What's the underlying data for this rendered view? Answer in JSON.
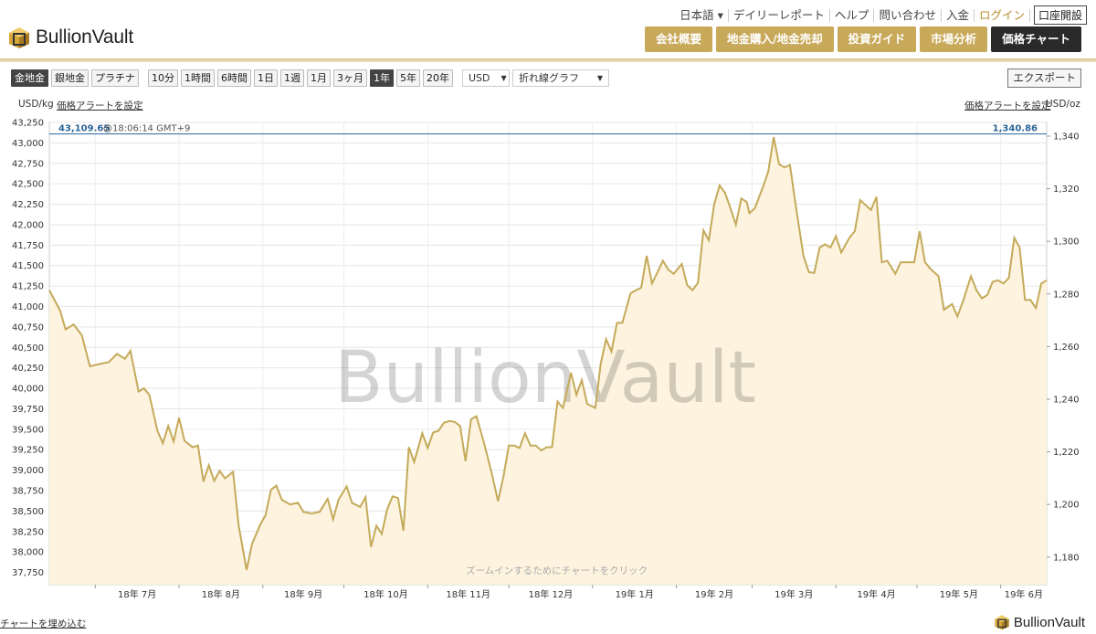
{
  "brand": {
    "name": "BullionVault"
  },
  "top_links": [
    "日本語 ▾",
    "デイリーレポート",
    "ヘルプ",
    "問い合わせ",
    "入金",
    "ログイン"
  ],
  "account_button": "口座開設",
  "nav": [
    "会社概要",
    "地金購入/地金売却",
    "投資ガイド",
    "市場分析",
    "価格チャート"
  ],
  "toolbar": {
    "metals": [
      "金地金",
      "銀地金",
      "プラチナ"
    ],
    "ranges": [
      "10分",
      "1時間",
      "6時間",
      "1日",
      "1週",
      "1月",
      "3ヶ月",
      "1年",
      "5年",
      "20年"
    ],
    "active_metal": "金地金",
    "active_range": "1年",
    "currency": "USD",
    "chart_type": "折れ線グラフ",
    "export_label": "エクスポート"
  },
  "chart": {
    "left_unit": "USD/kg",
    "right_unit": "USD/oz",
    "alert_left": "価格アラートを設定",
    "alert_right": "価格アラートを設定",
    "current_kg": "43,109.65",
    "current_time": "@18:06:14 GMT+9",
    "current_oz": "1,340.86",
    "watermark": "BullionVault",
    "zoom_hint": "ズームインするためにチャートをクリック",
    "load_link": "チャートを埋め込む",
    "line_color": "#c4aa5a",
    "fill_color": "#fdf3df",
    "current_color": "#2a6496"
  },
  "chart_data": {
    "type": "area",
    "title": "",
    "xlabel": "",
    "ylabel": "USD/kg",
    "ylabel_right": "USD/oz",
    "ylim": [
      37600,
      43250
    ],
    "ylim_right": [
      1169.5,
      1345.2
    ],
    "y_ticks": [
      "43,250",
      "43,000",
      "42,750",
      "42,500",
      "42,250",
      "42,000",
      "41,750",
      "41,500",
      "41,250",
      "41,000",
      "40,750",
      "40,500",
      "40,250",
      "40,000",
      "39,750",
      "39,500",
      "39,250",
      "39,000",
      "38,750",
      "38,500",
      "38,250",
      "38,000",
      "37,750"
    ],
    "y_ticks_right": [
      "1,340",
      "1,320",
      "1,300",
      "1,280",
      "1,260",
      "1,240",
      "1,220",
      "1,200",
      "1,180"
    ],
    "x_ticks": [
      "18年 7月",
      "18年 8月",
      "18年 9月",
      "18年 10月",
      "18年 11月",
      "18年 12月",
      "19年 1月",
      "19年 2月",
      "19年 3月",
      "19年 4月",
      "19年 5月",
      "19年 6月"
    ],
    "x_tick_dates": [
      "2018-07-01",
      "2018-08-01",
      "2018-09-01",
      "2018-10-01",
      "2018-11-01",
      "2018-12-01",
      "2019-01-01",
      "2019-02-01",
      "2019-03-01",
      "2019-04-01",
      "2019-05-01",
      "2019-06-01"
    ],
    "x_range": [
      "2018-06-14",
      "2019-06-18"
    ],
    "grid": true,
    "series": [
      {
        "points": [
          [
            "2018-06-14",
            41200
          ],
          [
            "2018-06-18",
            40950
          ],
          [
            "2018-06-20",
            40720
          ],
          [
            "2018-06-23",
            40780
          ],
          [
            "2018-06-26",
            40650
          ],
          [
            "2018-06-29",
            40270
          ],
          [
            "2018-07-03",
            40300
          ],
          [
            "2018-07-06",
            40320
          ],
          [
            "2018-07-09",
            40420
          ],
          [
            "2018-07-12",
            40360
          ],
          [
            "2018-07-14",
            40460
          ],
          [
            "2018-07-17",
            39960
          ],
          [
            "2018-07-19",
            40000
          ],
          [
            "2018-07-21",
            39920
          ],
          [
            "2018-07-24",
            39480
          ],
          [
            "2018-07-26",
            39330
          ],
          [
            "2018-07-28",
            39540
          ],
          [
            "2018-07-30",
            39350
          ],
          [
            "2018-08-01",
            39640
          ],
          [
            "2018-08-03",
            39360
          ],
          [
            "2018-08-06",
            39280
          ],
          [
            "2018-08-08",
            39300
          ],
          [
            "2018-08-10",
            38860
          ],
          [
            "2018-08-12",
            39060
          ],
          [
            "2018-08-14",
            38870
          ],
          [
            "2018-08-16",
            38990
          ],
          [
            "2018-08-18",
            38900
          ],
          [
            "2018-08-21",
            38980
          ],
          [
            "2018-08-23",
            38330
          ],
          [
            "2018-08-26",
            37780
          ],
          [
            "2018-08-28",
            38100
          ],
          [
            "2018-08-31",
            38330
          ],
          [
            "2018-09-02",
            38450
          ],
          [
            "2018-09-04",
            38760
          ],
          [
            "2018-09-06",
            38810
          ],
          [
            "2018-09-08",
            38640
          ],
          [
            "2018-09-11",
            38580
          ],
          [
            "2018-09-14",
            38600
          ],
          [
            "2018-09-16",
            38490
          ],
          [
            "2018-09-19",
            38470
          ],
          [
            "2018-09-22",
            38490
          ],
          [
            "2018-09-25",
            38650
          ],
          [
            "2018-09-27",
            38400
          ],
          [
            "2018-09-29",
            38640
          ],
          [
            "2018-10-02",
            38800
          ],
          [
            "2018-10-04",
            38600
          ],
          [
            "2018-10-07",
            38550
          ],
          [
            "2018-10-09",
            38670
          ],
          [
            "2018-10-11",
            38060
          ],
          [
            "2018-10-13",
            38320
          ],
          [
            "2018-10-15",
            38220
          ],
          [
            "2018-10-17",
            38520
          ],
          [
            "2018-10-19",
            38680
          ],
          [
            "2018-10-21",
            38660
          ],
          [
            "2018-10-23",
            38260
          ],
          [
            "2018-10-25",
            39280
          ],
          [
            "2018-10-27",
            39100
          ],
          [
            "2018-10-30",
            39450
          ],
          [
            "2018-11-01",
            39270
          ],
          [
            "2018-11-03",
            39460
          ],
          [
            "2018-11-05",
            39480
          ],
          [
            "2018-11-07",
            39580
          ],
          [
            "2018-11-09",
            39600
          ],
          [
            "2018-11-11",
            39590
          ],
          [
            "2018-11-13",
            39540
          ],
          [
            "2018-11-15",
            39110
          ],
          [
            "2018-11-17",
            39620
          ],
          [
            "2018-11-19",
            39660
          ],
          [
            "2018-11-22",
            39310
          ],
          [
            "2018-11-25",
            38920
          ],
          [
            "2018-11-27",
            38620
          ],
          [
            "2018-11-29",
            38920
          ],
          [
            "2018-12-01",
            39300
          ],
          [
            "2018-12-03",
            39300
          ],
          [
            "2018-12-05",
            39270
          ],
          [
            "2018-12-07",
            39450
          ],
          [
            "2018-12-09",
            39300
          ],
          [
            "2018-12-11",
            39300
          ],
          [
            "2018-12-13",
            39240
          ],
          [
            "2018-12-15",
            39280
          ],
          [
            "2018-12-17",
            39280
          ],
          [
            "2018-12-19",
            39840
          ],
          [
            "2018-12-21",
            39760
          ],
          [
            "2018-12-24",
            40190
          ],
          [
            "2018-12-26",
            39920
          ],
          [
            "2018-12-28",
            40100
          ],
          [
            "2018-12-30",
            39810
          ],
          [
            "2019-01-02",
            39760
          ],
          [
            "2019-01-04",
            40300
          ],
          [
            "2019-01-06",
            40600
          ],
          [
            "2019-01-08",
            40450
          ],
          [
            "2019-01-10",
            40800
          ],
          [
            "2019-01-12",
            40800
          ],
          [
            "2019-01-15",
            41160
          ],
          [
            "2019-01-17",
            41200
          ],
          [
            "2019-01-19",
            41230
          ],
          [
            "2019-01-21",
            41620
          ],
          [
            "2019-01-23",
            41280
          ],
          [
            "2019-01-25",
            41420
          ],
          [
            "2019-01-27",
            41560
          ],
          [
            "2019-01-29",
            41450
          ],
          [
            "2019-01-31",
            41400
          ],
          [
            "2019-02-03",
            41520
          ],
          [
            "2019-02-05",
            41260
          ],
          [
            "2019-02-07",
            41200
          ],
          [
            "2019-02-09",
            41290
          ],
          [
            "2019-02-11",
            41930
          ],
          [
            "2019-02-13",
            41810
          ],
          [
            "2019-02-15",
            42250
          ],
          [
            "2019-02-17",
            42480
          ],
          [
            "2019-02-19",
            42390
          ],
          [
            "2019-02-21",
            42200
          ],
          [
            "2019-02-23",
            42000
          ],
          [
            "2019-02-25",
            42320
          ],
          [
            "2019-02-27",
            42280
          ],
          [
            "2019-02-28",
            42140
          ],
          [
            "2019-03-02",
            42200
          ],
          [
            "2019-03-05",
            42460
          ],
          [
            "2019-03-07",
            42650
          ],
          [
            "2019-03-09",
            43070
          ],
          [
            "2019-03-11",
            42740
          ],
          [
            "2019-03-13",
            42700
          ],
          [
            "2019-03-15",
            42730
          ],
          [
            "2019-03-17",
            42270
          ],
          [
            "2019-03-20",
            41620
          ],
          [
            "2019-03-22",
            41420
          ],
          [
            "2019-03-24",
            41410
          ],
          [
            "2019-03-26",
            41720
          ],
          [
            "2019-03-28",
            41760
          ],
          [
            "2019-03-30",
            41720
          ],
          [
            "2019-04-01",
            41860
          ],
          [
            "2019-04-03",
            41660
          ],
          [
            "2019-04-06",
            41840
          ],
          [
            "2019-04-08",
            41920
          ],
          [
            "2019-04-10",
            42300
          ],
          [
            "2019-04-12",
            42240
          ],
          [
            "2019-04-14",
            42180
          ],
          [
            "2019-04-16",
            42340
          ],
          [
            "2019-04-18",
            41540
          ],
          [
            "2019-04-20",
            41560
          ],
          [
            "2019-04-23",
            41400
          ],
          [
            "2019-04-25",
            41540
          ],
          [
            "2019-04-27",
            41540
          ],
          [
            "2019-04-30",
            41540
          ],
          [
            "2019-05-02",
            41920
          ],
          [
            "2019-05-04",
            41540
          ],
          [
            "2019-05-06",
            41460
          ],
          [
            "2019-05-09",
            41370
          ],
          [
            "2019-05-11",
            40960
          ],
          [
            "2019-05-14",
            41030
          ],
          [
            "2019-05-16",
            40880
          ],
          [
            "2019-05-18",
            41060
          ],
          [
            "2019-05-21",
            41370
          ],
          [
            "2019-05-23",
            41200
          ],
          [
            "2019-05-25",
            41100
          ],
          [
            "2019-05-27",
            41140
          ],
          [
            "2019-05-29",
            41300
          ],
          [
            "2019-05-31",
            41320
          ],
          [
            "2019-06-02",
            41280
          ],
          [
            "2019-06-04",
            41350
          ],
          [
            "2019-06-06",
            41840
          ],
          [
            "2019-06-08",
            41720
          ],
          [
            "2019-06-10",
            41080
          ],
          [
            "2019-06-12",
            41080
          ],
          [
            "2019-06-14",
            40980
          ],
          [
            "2019-06-16",
            41280
          ],
          [
            "2019-06-18",
            41320
          ]
        ]
      }
    ]
  }
}
